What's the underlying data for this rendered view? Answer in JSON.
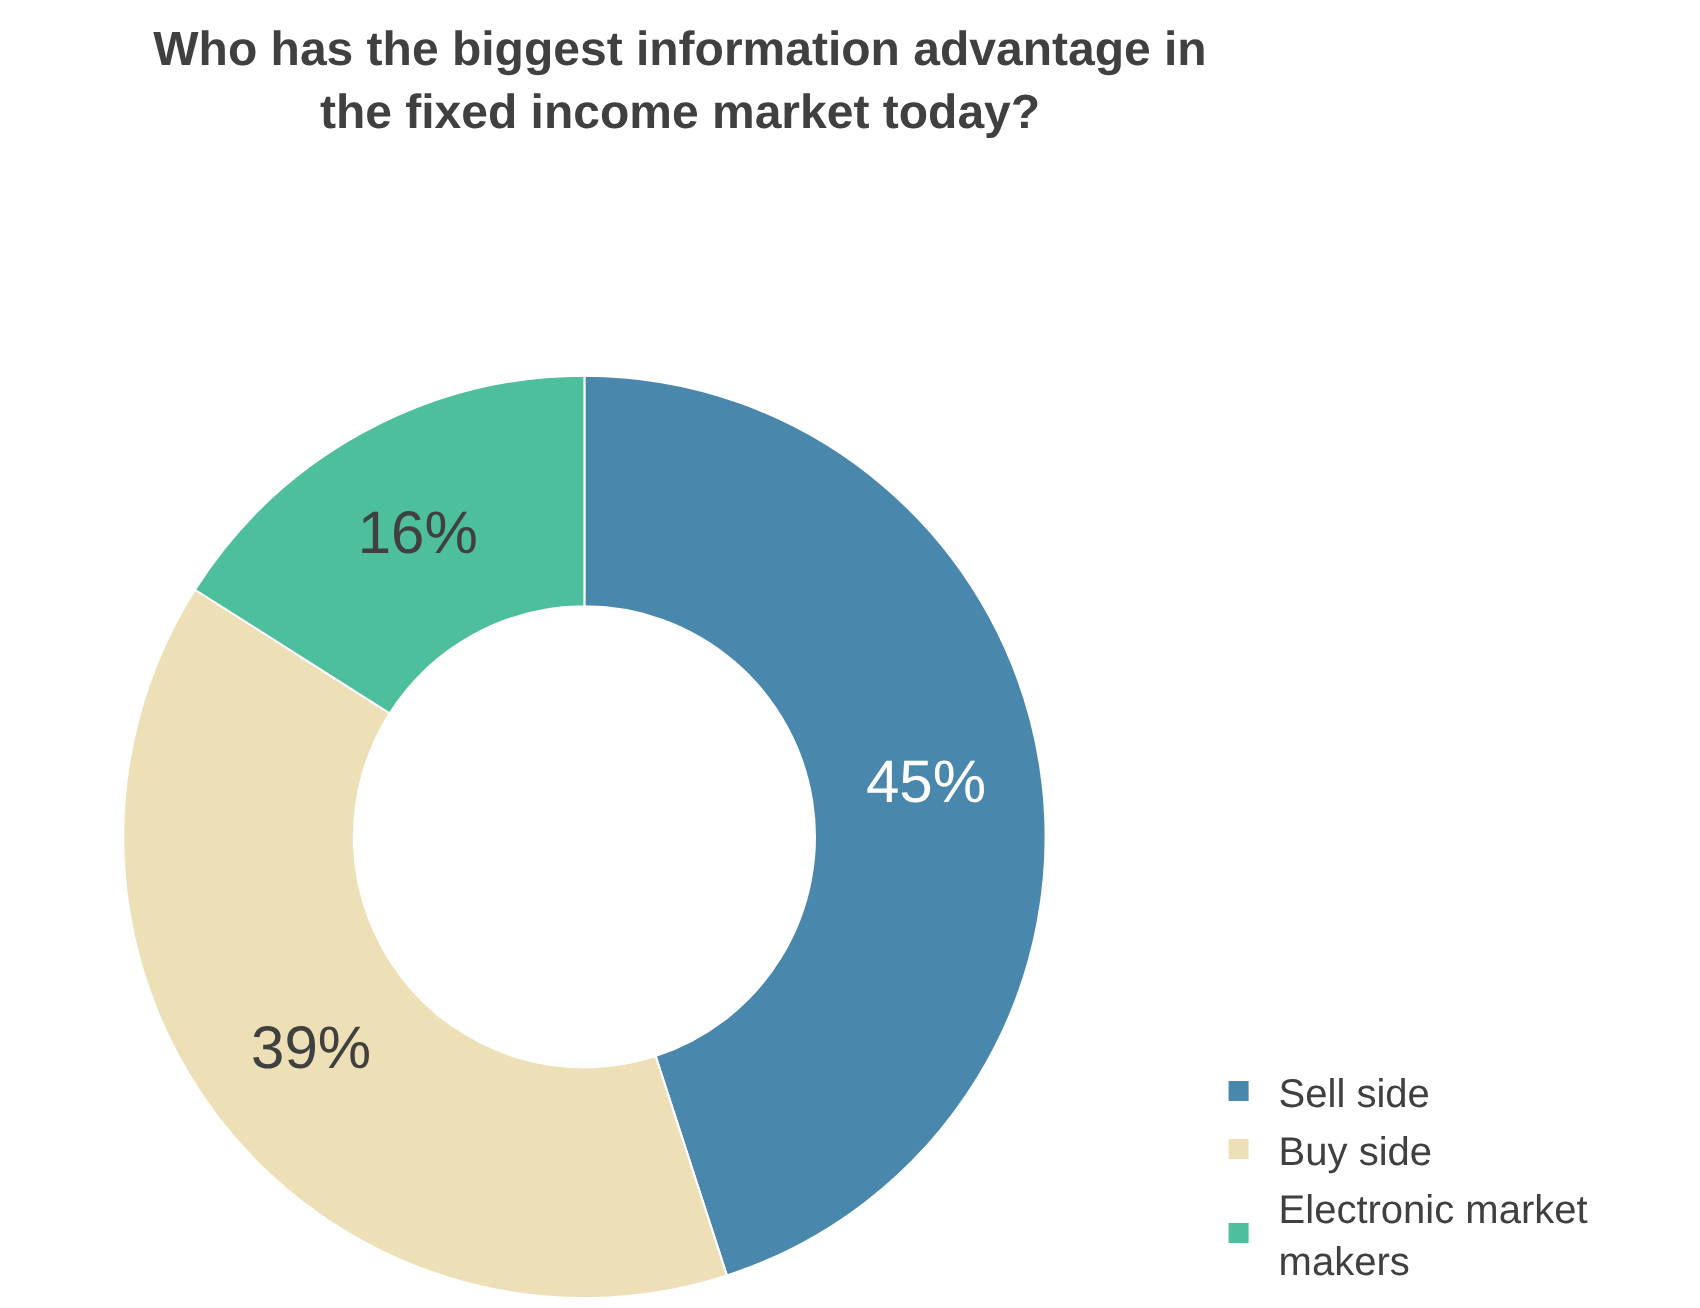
{
  "chart_data": {
    "type": "donut",
    "title": "Who has the biggest information advantage in the fixed income market today?",
    "categories": [
      "Sell side",
      "Buy side",
      "Electronic market makers"
    ],
    "values": [
      45,
      39,
      16
    ],
    "value_labels": [
      "45%",
      "39%",
      "16%"
    ],
    "colors": [
      "#4a87ad",
      "#ede0b6",
      "#4dbf9d"
    ],
    "legend": "bottom right"
  }
}
